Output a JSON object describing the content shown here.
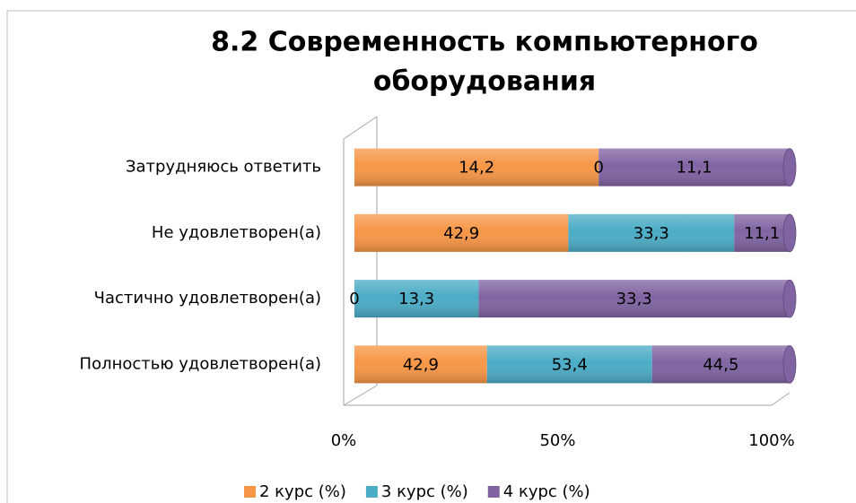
{
  "chart_data": {
    "type": "bar",
    "orientation": "horizontal",
    "stacked": "percent",
    "title": [
      "8.2 Современность компьютерного",
      "оборудования"
    ],
    "categories": [
      "Полностью удовлетворен(а)",
      "Частично удовлетворен(а)",
      "Не удовлетворен(а)",
      "Затрудняюсь ответить"
    ],
    "series": [
      {
        "name": "2 курс (%)",
        "color": "#f79646",
        "values": [
          42.9,
          0,
          42.9,
          14.2
        ],
        "value_labels": [
          "42,9",
          "0",
          "42,9",
          "14,2"
        ]
      },
      {
        "name": "3 курс (%)",
        "color": "#4bacc6",
        "values": [
          53.4,
          13.3,
          33.3,
          0
        ],
        "value_labels": [
          "53,4",
          "13,3",
          "33,3",
          "0"
        ]
      },
      {
        "name": "4 курс (%)",
        "color": "#8064a2",
        "values": [
          44.5,
          33.3,
          11.1,
          11.1
        ],
        "value_labels": [
          "44,5",
          "33,3",
          "11,1",
          "11,1"
        ]
      }
    ],
    "xlim": [
      0,
      100
    ],
    "xticks": [
      {
        "value": 0,
        "label": "0%"
      },
      {
        "value": 50,
        "label": "50%"
      },
      {
        "value": 100,
        "label": "100%"
      }
    ],
    "legend": "bottom"
  }
}
